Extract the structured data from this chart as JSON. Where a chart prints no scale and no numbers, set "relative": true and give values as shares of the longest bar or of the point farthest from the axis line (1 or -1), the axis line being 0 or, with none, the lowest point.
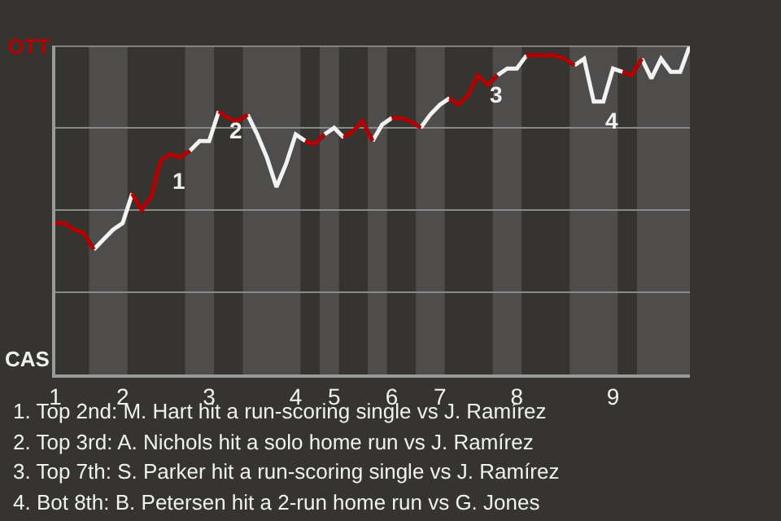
{
  "chart_data": {
    "type": "line",
    "relative": true,
    "grid": "y",
    "marker": "none",
    "line_style": "solid",
    "categories": [
      "1",
      null,
      null,
      null,
      null,
      null,
      null,
      "2",
      null,
      null,
      null,
      null,
      null,
      null,
      null,
      null,
      "3",
      null,
      null,
      null,
      null,
      null,
      null,
      null,
      null,
      "4",
      null,
      null,
      null,
      "5",
      null,
      null,
      null,
      null,
      null,
      "6",
      null,
      null,
      null,
      null,
      "7",
      null,
      null,
      null,
      null,
      null,
      null,
      null,
      "8",
      null,
      null,
      null,
      null,
      null,
      null,
      null,
      null,
      null,
      "9",
      null,
      null,
      null,
      null,
      null,
      null,
      null,
      null
    ],
    "series": [
      {
        "color": "#b30000",
        "values": [
          0.46,
          0.46,
          0.44,
          0.43,
          0.38,
          null,
          null,
          null,
          0.55,
          0.5,
          0.54,
          0.65,
          0.67,
          0.66,
          0.68,
          null,
          null,
          0.8,
          0.78,
          0.77,
          0.79,
          null,
          null,
          null,
          null,
          null,
          0.71,
          0.7,
          0.73,
          null,
          0.72,
          0.74,
          0.77,
          0.71,
          null,
          0.78,
          0.78,
          0.77,
          0.75,
          null,
          null,
          0.84,
          0.82,
          0.85,
          0.91,
          0.88,
          0.91,
          null,
          null,
          0.97,
          0.97,
          0.97,
          0.97,
          0.96,
          0.94,
          null,
          null,
          null,
          null,
          0.92,
          0.91,
          0.96,
          null,
          null,
          null,
          null,
          null
        ]
      },
      {
        "color": "#f2f2f2",
        "values": [
          null,
          null,
          null,
          null,
          0.38,
          0.41,
          0.44,
          0.46,
          0.55,
          null,
          null,
          null,
          null,
          null,
          0.68,
          0.71,
          0.71,
          0.8,
          null,
          null,
          0.79,
          0.73,
          0.66,
          0.57,
          0.64,
          0.73,
          0.71,
          null,
          0.73,
          0.75,
          0.72,
          null,
          null,
          0.71,
          0.76,
          0.78,
          null,
          null,
          0.75,
          0.79,
          0.82,
          0.84,
          null,
          null,
          null,
          null,
          0.91,
          0.93,
          0.93,
          0.97,
          null,
          null,
          null,
          null,
          0.94,
          0.96,
          0.83,
          0.83,
          0.93,
          0.92,
          null,
          0.96,
          0.9,
          0.96,
          0.92,
          0.92,
          1.0
        ]
      }
    ],
    "annotations": [
      "OTT",
      "CAS",
      {
        "text": "1",
        "y": 0.65
      },
      {
        "text": "2",
        "y": 0.8
      },
      {
        "text": "3",
        "y": 0.91
      },
      {
        "text": "4",
        "y": 0.83
      },
      "1. Top 2nd: M. Hart hit a run-scoring single vs J. Ramírez",
      "2. Top 3rd: A. Nichols hit a solo home run vs J. Ramírez",
      "3. Top 7th: S. Parker hit a run-scoring single vs J. Ramírez",
      "4. Bot 8th: B. Petersen hit a 2-run home run vs G. Jones"
    ]
  }
}
